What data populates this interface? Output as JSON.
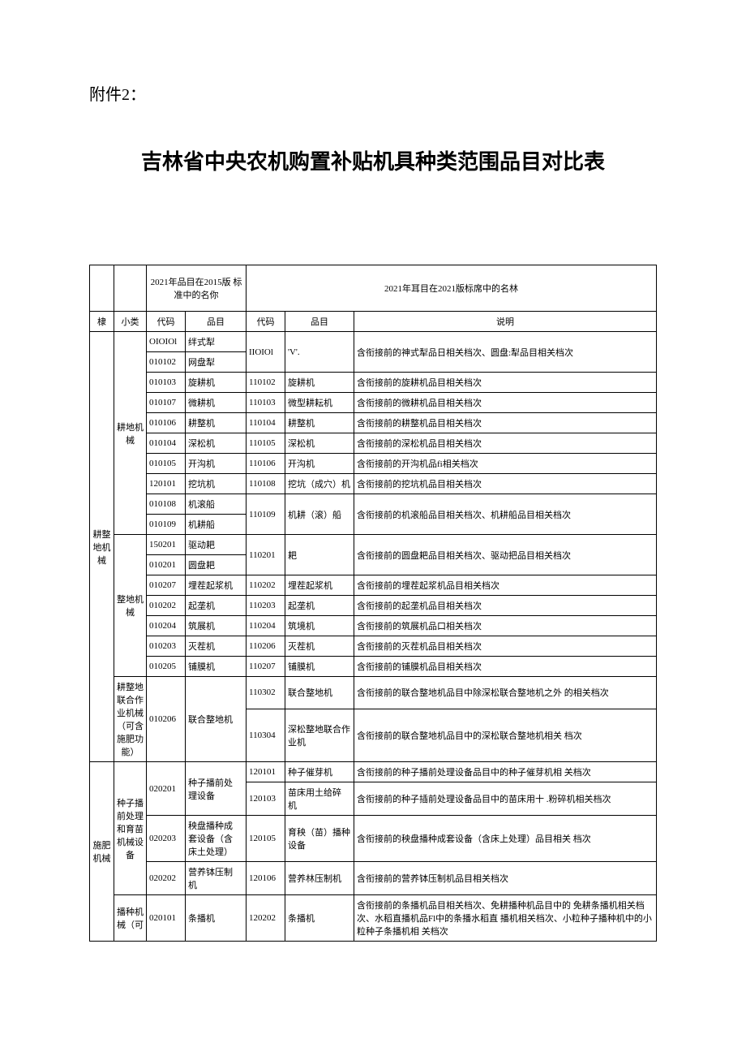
{
  "attachment": "附件2：",
  "title": "吉林省中央农机购置补贴机具种类范围品目对比表",
  "headerGroup1": "2021年品目在2015版 标准中的名你",
  "headerGroup2": "2021年耳目在2021版标席中的名林",
  "colHeaders": {
    "big": "棣",
    "sub": "小类",
    "code": "代码",
    "item": "品目",
    "code2": "代码",
    "item2": "品目",
    "desc": "说明"
  },
  "bigCats": {
    "c1": "耕整地机械",
    "c2": "施肥机械"
  },
  "subCats": {
    "s1": "耕地机械",
    "s2": "整地机械",
    "s3": "耕整地联合作业机械（可含施肥功能）",
    "s4": "种子播前处理和育苗机械设备",
    "s5": "播种机械（可"
  },
  "rows": [
    {
      "code1": "OIOIOl",
      "item1": "绊式犁",
      "code2": "IIOIOl",
      "item2": "'V'.",
      "desc": "含衔接前的神式犁品日相关档次、圆盘:犁品目相关档次"
    },
    {
      "code1": "010102",
      "item1": "网盘犁",
      "code2": "",
      "item2": "",
      "desc": ""
    },
    {
      "code1": "010103",
      "item1": "旋耕机",
      "code2": "110102",
      "item2": "旋耕机",
      "desc": "含衔接前的旋耕机品目相关档次"
    },
    {
      "code1": "010107",
      "item1": "微耕机",
      "code2": "110103",
      "item2": "微型耕耘机",
      "desc": "含衔接前的微耕机品目相关档次"
    },
    {
      "code1": "010106",
      "item1": "耕整机",
      "code2": "110104",
      "item2": "耕整机",
      "desc": "含衔接前的耕整机品目相关档次"
    },
    {
      "code1": "010104",
      "item1": "深松机",
      "code2": "110105",
      "item2": "深松机",
      "desc": "含衔接前的深松机品目相关档次"
    },
    {
      "code1": "010105",
      "item1": "开沟机",
      "code2": "110106",
      "item2": "开沟机",
      "desc": "含衔接前的开沟机品fi相关档次"
    },
    {
      "code1": "120101",
      "item1": "挖坑机",
      "code2": "110108",
      "item2": "挖坑（成穴）机",
      "desc": "含衔接前的挖坑机品目相关档次"
    },
    {
      "code1": "010108",
      "item1": "机滚船",
      "code2": "110109",
      "item2": "机耕（滚）船",
      "desc": "含衔接前的机滚船品目相关档次、机耕船品目相关档次"
    },
    {
      "code1": "010109",
      "item1": "机耕船",
      "code2": "",
      "item2": "",
      "desc": ""
    },
    {
      "code1": "150201",
      "item1": "驱动耙",
      "code2": "110201",
      "item2": "耙",
      "desc": "含衔接前的圆盘耙品目相关档次、驱动把品目相关档次"
    },
    {
      "code1": "010201",
      "item1": "圆盘耙",
      "code2": "",
      "item2": "",
      "desc": ""
    },
    {
      "code1": "010207",
      "item1": "埋茬起浆机",
      "code2": "110202",
      "item2": "埋茬起浆机",
      "desc": "含衔接前的埋茬起浆机品目相关档次"
    },
    {
      "code1": "010202",
      "item1": "起垄机",
      "code2": "110203",
      "item2": "起垄机",
      "desc": "含衔接前的起垄机品目相关档次"
    },
    {
      "code1": "010204",
      "item1": "筑展机",
      "code2": "110204",
      "item2": "筑境机",
      "desc": "含衔接前的筑展机品口相关档次"
    },
    {
      "code1": "010203",
      "item1": "灭茬机",
      "code2": "110206",
      "item2": "灭茬机",
      "desc": "含衔接前的灭茬机品目相关档次"
    },
    {
      "code1": "010205",
      "item1": "铺膜机",
      "code2": "110207",
      "item2": "铺膜机",
      "desc": "含衔接前的铺膜机品目相关档次"
    },
    {
      "code1": "010206",
      "item1": "联合整地机",
      "code2": "110302",
      "item2": "联合整地机",
      "desc": "含衔接前的联合整地机品目中除深松联合整地机之外 的相关档次"
    },
    {
      "code1": "",
      "item1": "",
      "code2": "110304",
      "item2": "深松整地联合作业机",
      "desc": "含衔接前的联合整地机品目中的深松联合整地机相关 档次"
    },
    {
      "code1": "020201",
      "item1": "种子播前处 理设备",
      "code2": "120101",
      "item2": "种子催芽机",
      "desc": "含衔接前的种子播前处理设备品目中的种子催芽机相 关档次"
    },
    {
      "code1": "",
      "item1": "",
      "code2": "120103",
      "item2": "苗床用土给碎 机",
      "desc": "含衔接前的种子插前处理设备品目中的苗床用十    .粉碎机相关档次"
    },
    {
      "code1": "020203",
      "item1": "秧盘播种成 套设备（含 床土处理）",
      "code2": "120105",
      "item2": "育秧（苗）播种设备",
      "desc": "含衔接前的秧盘播种成套设备（含床上处理）品目相关 档次"
    },
    {
      "code1": "020202",
      "item1": "营养钵压制 机",
      "code2": "120106",
      "item2": "营养林压制机",
      "desc": "含衔接前的营养钵压制机品目相关档次"
    },
    {
      "code1": "020101",
      "item1": "条播机",
      "code2": "120202",
      "item2": "条播机",
      "desc": "含衔接前的条播机品目相关档次、免耕播种机品目中的 免耕条播机相关档次、水稻直播机品Fl中的条播水稻直 播机相关档次、小粒种子播种机中的小粒种子条播机相 关档次"
    }
  ]
}
